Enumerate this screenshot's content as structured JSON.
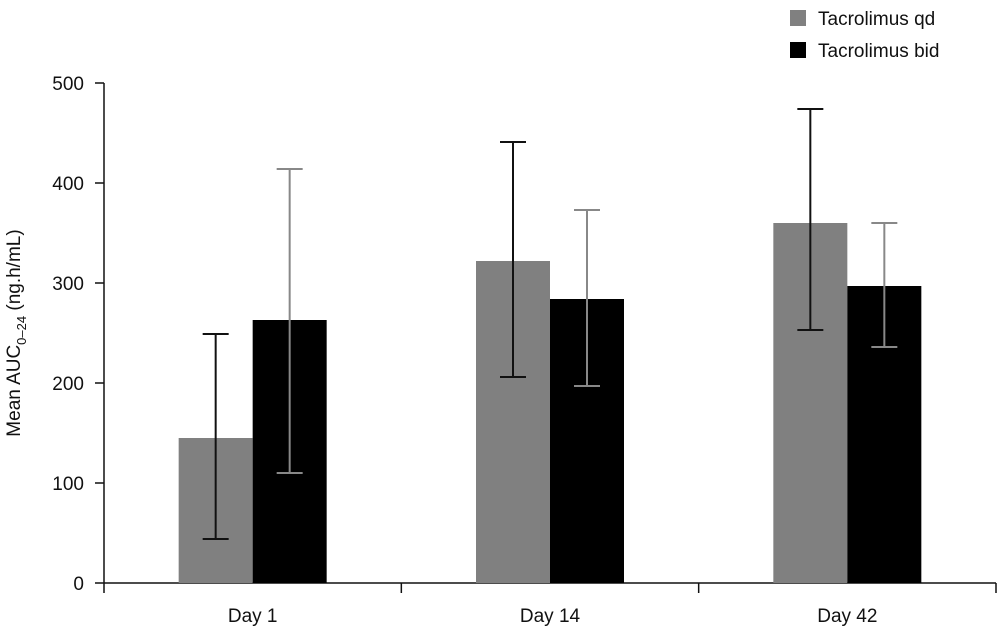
{
  "chart_data": {
    "type": "bar",
    "categories": [
      "Day 1",
      "Day 14",
      "Day 42"
    ],
    "series": [
      {
        "name": "Tacrolimus qd",
        "color": "#808080",
        "error_color": "#111111",
        "values": [
          145,
          322,
          360
        ],
        "err_low": [
          44,
          206,
          253
        ],
        "err_high": [
          249,
          441,
          474
        ]
      },
      {
        "name": "Tacrolimus bid",
        "color": "#000000",
        "error_color": "#888888",
        "values": [
          263,
          284,
          297
        ],
        "err_low": [
          110,
          197,
          236
        ],
        "err_high": [
          414,
          373,
          360
        ]
      }
    ],
    "ylabel_main": "Mean AUC",
    "ylabel_sub": "0–24",
    "ylabel_unit": " (ng.h/mL)",
    "ylim": [
      0,
      500
    ],
    "yticks": [
      "0",
      "100",
      "200",
      "300",
      "400",
      "500"
    ],
    "legend_position": "top-right",
    "grid": false
  }
}
